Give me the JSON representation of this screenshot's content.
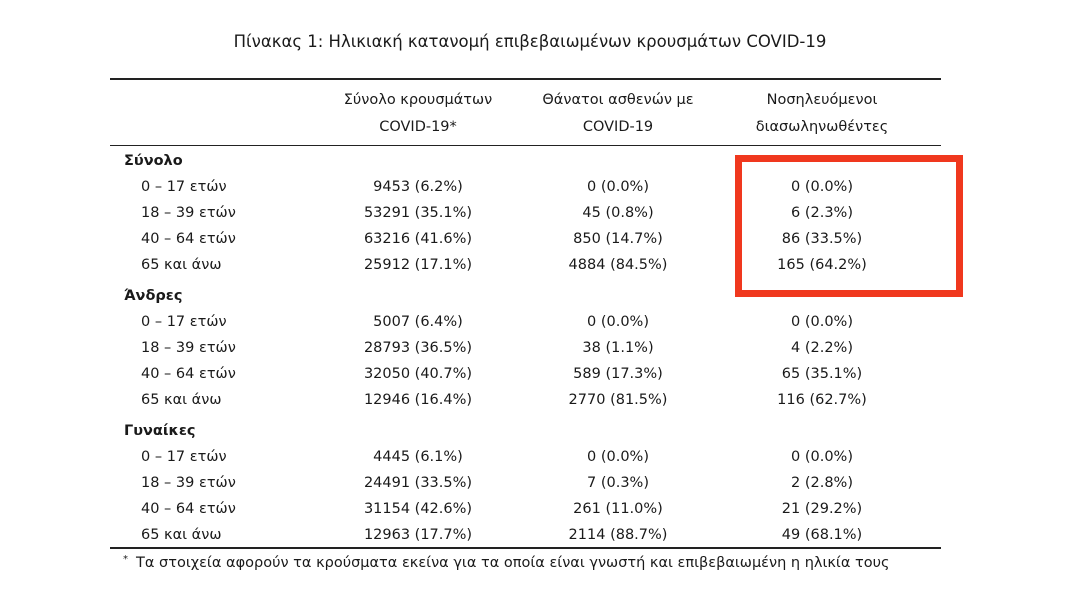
{
  "table": {
    "title": "Πίνακας 1: Ηλικιακή κατανομή επιβεβαιωμένων κρουσμάτων COVID-19",
    "columns": [
      [
        "Σύνολο κρουσμάτων",
        "COVID-19*"
      ],
      [
        "Θάνατοι ασθενών με",
        "COVID-19"
      ],
      [
        "Νοσηλευόμενοι",
        "διασωληνωθέντες"
      ]
    ],
    "groups": [
      {
        "label": "Σύνολο",
        "rows": [
          [
            "0 – 17 ετών",
            "9453 (6.2%)",
            "0 (0.0%)",
            "0 (0.0%)"
          ],
          [
            "18 – 39 ετών",
            "53291 (35.1%)",
            "45 (0.8%)",
            "6 (2.3%)"
          ],
          [
            "40 – 64 ετών",
            "63216 (41.6%)",
            "850 (14.7%)",
            "86 (33.5%)"
          ],
          [
            "65 και άνω",
            "25912 (17.1%)",
            "4884 (84.5%)",
            "165 (64.2%)"
          ]
        ]
      },
      {
        "label": "Άνδρες",
        "rows": [
          [
            "0 – 17 ετών",
            "5007 (6.4%)",
            "0 (0.0%)",
            "0 (0.0%)"
          ],
          [
            "18 – 39 ετών",
            "28793 (36.5%)",
            "38 (1.1%)",
            "4 (2.2%)"
          ],
          [
            "40 – 64 ετών",
            "32050 (40.7%)",
            "589 (17.3%)",
            "65 (35.1%)"
          ],
          [
            "65 και άνω",
            "12946 (16.4%)",
            "2770 (81.5%)",
            "116 (62.7%)"
          ]
        ]
      },
      {
        "label": "Γυναίκες",
        "rows": [
          [
            "0 – 17 ετών",
            "4445 (6.1%)",
            "0 (0.0%)",
            "0 (0.0%)"
          ],
          [
            "18 – 39 ετών",
            "24491 (33.5%)",
            "7 (0.3%)",
            "2 (2.8%)"
          ],
          [
            "40 – 64 ετών",
            "31154 (42.6%)",
            "261 (11.0%)",
            "21 (29.2%)"
          ],
          [
            "65 και άνω",
            "12963 (17.7%)",
            "2114 (88.7%)",
            "49 (68.1%)"
          ]
        ]
      }
    ],
    "footnote_marker": "*",
    "footnote": "Τα στοιχεία αφορούν τα κρούσματα εκείνα για τα οποία είναι γνωστή και επιβεβαιωμένη η ηλικία τους"
  }
}
